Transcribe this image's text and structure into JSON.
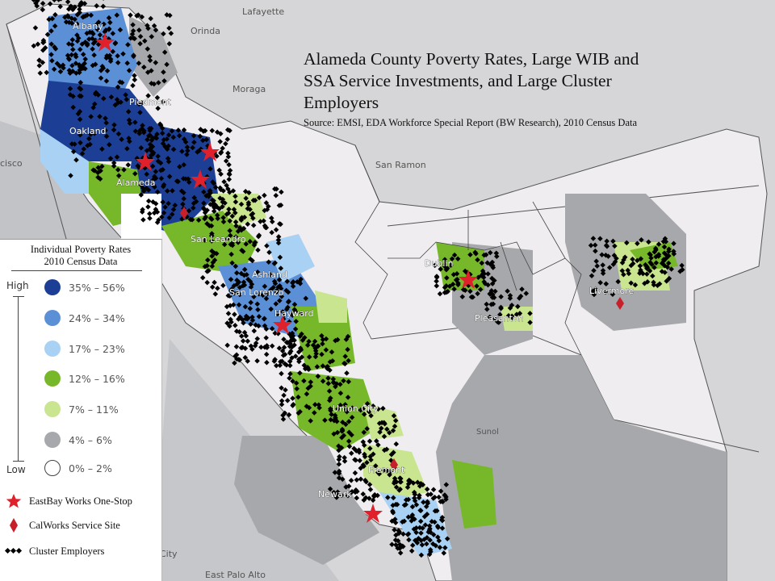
{
  "title": "Alameda County Poverty Rates, Large WIB and SSA Service Investments, and Large Cluster Employers",
  "title_lines": [
    "Alameda County Poverty Rates, Large WIB and",
    "SSA Service Investments, and Large Cluster",
    "Employers"
  ],
  "source": "Source: EMSI, EDA Workforce Special Report (BW Research), 2010 Census Data",
  "legend": {
    "title_line1": "Individual Poverty Rates",
    "title_line2": "2010 Census Data",
    "scale_high": "High",
    "scale_low": "Low",
    "classes": [
      {
        "label": "35% – 56%",
        "color": "#1c3f95"
      },
      {
        "label": "24% – 34%",
        "color": "#5b8fd6"
      },
      {
        "label": "17% – 23%",
        "color": "#a8d1f3"
      },
      {
        "label": "12% – 16%",
        "color": "#77b82a"
      },
      {
        "label": "7% – 11%",
        "color": "#c9e58f"
      },
      {
        "label": "4% – 6%",
        "color": "#a7a8ab"
      },
      {
        "label": "0% – 2%",
        "color": "#ffffff"
      }
    ],
    "symbols": [
      {
        "label": "EastBay Works One-Stop",
        "icon": "star-icon",
        "color": "#e0202a"
      },
      {
        "label": "CalWorks Service Site",
        "icon": "diamond-icon",
        "color": "#c8202a"
      },
      {
        "label": "Cluster Employers",
        "icon": "dot-cluster-icon",
        "color": "#000000"
      }
    ]
  },
  "places_background": {
    "lafayette": "Lafayette",
    "orinda": "Orinda",
    "moraga": "Moraga",
    "san_ramon": "San Ramon",
    "sunol": "Sunol",
    "cisco": "cisco",
    "city": "City",
    "east_palo_alto": "East Palo Alto"
  },
  "places_on_map": {
    "albany": "Albany",
    "oakland": "Oakland",
    "piedmont": "Piedmont",
    "alameda": "Alameda",
    "san_leandro": "San Leandro",
    "ashland": "Ashland",
    "san_lorenzo": "San Lorenzo",
    "hayward": "Hayward",
    "dublin": "Dublin",
    "pleasanton": "Pleasanton",
    "livermore": "Livermore",
    "union_city": "Union City",
    "fremont": "Fremont",
    "newark": "Newark"
  }
}
